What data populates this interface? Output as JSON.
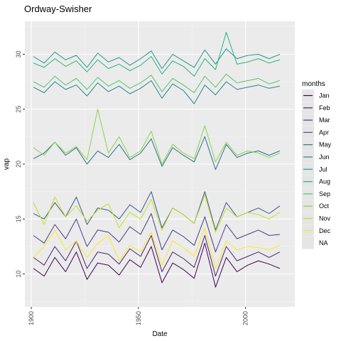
{
  "chart_data": {
    "type": "line",
    "title": "Ordway-Swisher",
    "xlabel": "Date",
    "ylabel": "vap",
    "xlim": [
      1897,
      2023
    ],
    "ylim": [
      7.0,
      33.0
    ],
    "x_ticks": [
      1900,
      1950,
      2000
    ],
    "y_ticks": [
      10,
      15,
      20,
      25,
      30
    ],
    "grid": true,
    "legend_position": "right",
    "legend_title": "months",
    "legend_entries": [
      "Jan",
      "Feb",
      "Mar",
      "Apr",
      "May",
      "Jun",
      "Jul",
      "Aug",
      "Sep",
      "Oct",
      "Nov",
      "Dec",
      "NA"
    ],
    "colors": {
      "panel_bg": "#ebebeb",
      "grid_major": "#ffffff",
      "grid_minor": "#f4f4f4",
      "na_key": "#e5e5e5"
    },
    "x_start": 1901,
    "x_step": 5,
    "series": [
      {
        "name": "Jan",
        "color": "#440154",
        "values": [
          10.5,
          9.8,
          11.5,
          10.2,
          12.0,
          9.5,
          11.0,
          10.8,
          9.9,
          11.3,
          10.6,
          12.5,
          9.2,
          11.0,
          10.4,
          9.6,
          12.8,
          8.8,
          11.5,
          10.2,
          10.8,
          11.2,
          10.9,
          10.5
        ]
      },
      {
        "name": "Feb",
        "color": "#482173",
        "values": [
          11.5,
          10.8,
          12.5,
          11.2,
          13.0,
          10.5,
          12.0,
          11.8,
          10.9,
          12.3,
          11.6,
          13.5,
          10.2,
          12.0,
          11.4,
          10.6,
          13.5,
          9.8,
          12.5,
          11.2,
          11.6,
          12.0,
          11.5,
          12.0
        ]
      },
      {
        "name": "Mar",
        "color": "#433E85",
        "values": [
          13.5,
          12.8,
          14.5,
          13.2,
          15.0,
          12.5,
          14.0,
          13.8,
          12.9,
          14.3,
          13.6,
          15.5,
          12.2,
          14.0,
          13.4,
          12.6,
          15.2,
          12.0,
          14.5,
          13.2,
          13.6,
          14.0,
          13.5,
          13.6
        ]
      },
      {
        "name": "Apr",
        "color": "#38598C",
        "values": [
          15.5,
          15.0,
          16.5,
          15.2,
          17.0,
          14.5,
          16.0,
          15.8,
          15.0,
          16.3,
          15.6,
          17.5,
          14.2,
          16.0,
          15.4,
          14.6,
          17.5,
          14.0,
          16.5,
          15.2,
          15.6,
          16.0,
          15.5,
          16.2
        ]
      },
      {
        "name": "May",
        "color": "#2D708E",
        "values": [
          20.5,
          21.0,
          22.0,
          20.8,
          21.5,
          20.0,
          21.2,
          20.6,
          21.8,
          20.4,
          21.0,
          22.3,
          19.8,
          21.5,
          20.8,
          20.2,
          22.5,
          19.5,
          21.8,
          20.6,
          21.0,
          21.2,
          20.8,
          21.2
        ]
      },
      {
        "name": "Jun",
        "color": "#25858E",
        "values": [
          27.0,
          26.5,
          27.5,
          26.8,
          27.2,
          26.2,
          27.4,
          26.6,
          27.1,
          26.4,
          26.9,
          27.6,
          26.0,
          27.3,
          26.7,
          25.5,
          27.2,
          26.3,
          27.5,
          26.8,
          27.0,
          27.2,
          26.9,
          27.1
        ]
      },
      {
        "name": "Jul",
        "color": "#1E9B8A",
        "values": [
          29.8,
          29.2,
          30.2,
          29.5,
          29.9,
          28.8,
          30.1,
          29.3,
          29.7,
          29.0,
          29.6,
          30.3,
          28.7,
          30.0,
          29.4,
          28.8,
          30.4,
          29.1,
          30.5,
          29.6,
          29.9,
          30.0,
          29.6,
          30.0
        ]
      },
      {
        "name": "Aug",
        "color": "#2BB07F",
        "values": [
          29.2,
          28.8,
          29.6,
          28.9,
          29.4,
          28.4,
          29.5,
          28.7,
          29.1,
          28.5,
          29.0,
          29.8,
          28.2,
          29.4,
          28.9,
          28.0,
          29.6,
          28.6,
          32.0,
          29.1,
          29.3,
          29.6,
          29.2,
          29.5
        ]
      },
      {
        "name": "Sep",
        "color": "#51C56A",
        "values": [
          27.5,
          27.0,
          28.0,
          27.2,
          27.8,
          26.8,
          27.9,
          27.1,
          27.6,
          26.9,
          27.4,
          28.1,
          26.6,
          27.8,
          27.2,
          26.5,
          28.0,
          27.0,
          28.2,
          27.4,
          27.6,
          27.8,
          27.3,
          27.6
        ]
      },
      {
        "name": "Oct",
        "color": "#85D54A",
        "values": [
          21.5,
          20.8,
          22.0,
          21.0,
          21.6,
          20.4,
          25.0,
          21.0,
          22.5,
          20.6,
          21.2,
          23.0,
          20.0,
          21.8,
          21.0,
          20.5,
          23.5,
          20.2,
          22.0,
          20.8,
          21.2,
          21.0,
          20.6,
          21.0
        ]
      },
      {
        "name": "Nov",
        "color": "#C2DF23",
        "values": [
          16.5,
          14.5,
          17.0,
          15.2,
          16.2,
          14.8,
          15.8,
          16.4,
          14.2,
          15.6,
          15.0,
          16.8,
          14.0,
          16.0,
          15.4,
          14.6,
          17.2,
          13.8,
          16.0,
          15.2,
          15.6,
          15.4,
          15.0,
          15.6
        ]
      },
      {
        "name": "Dec",
        "color": "#FDE725",
        "values": [
          11.5,
          12.5,
          14.0,
          12.2,
          13.0,
          11.5,
          12.8,
          13.5,
          11.2,
          12.6,
          12.0,
          13.8,
          10.8,
          13.0,
          12.4,
          11.6,
          14.2,
          10.5,
          13.0,
          12.2,
          12.5,
          12.4,
          12.2,
          12.6
        ]
      }
    ]
  }
}
